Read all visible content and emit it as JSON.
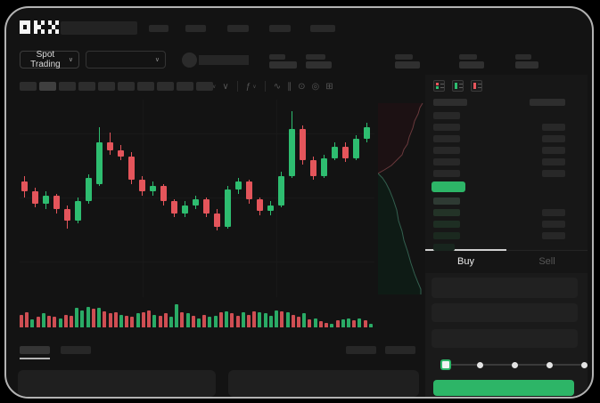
{
  "app": {
    "logo_label": "OKX"
  },
  "colors": {
    "candle_green": "#2ebd70",
    "candle_red": "#e4555b",
    "accent_green": "#2db567",
    "tab_indicator": "#cfcfcf",
    "panel_bg": "#171717",
    "device_bg": "#131313"
  },
  "header": {
    "nav_placeholder_count": 5
  },
  "ticker": {
    "market_selector": {
      "label": "Spot Trading",
      "chevron": "∨"
    },
    "pair_dropdown": {
      "chevron": "∨"
    },
    "stat_pair_count": 5
  },
  "chart_toolbar": {
    "timeframe_count": 10,
    "icons": [
      {
        "name": "candlestick-style-icon",
        "glyph": "",
        "chevron": "∨"
      },
      {
        "name": "chart-layout-icon",
        "glyph": "∨"
      },
      {
        "name": "divider"
      },
      {
        "name": "indicators-icon",
        "glyph": "ƒ",
        "chevron": "∨"
      },
      {
        "name": "divider"
      },
      {
        "name": "drawing-tools-icon",
        "glyph": "∿"
      },
      {
        "name": "compare-icon",
        "glyph": "∥"
      },
      {
        "name": "screenshot-icon",
        "glyph": "⊙"
      },
      {
        "name": "settings-icon",
        "glyph": "◎"
      },
      {
        "name": "fullscreen-icon",
        "glyph": "⊞"
      }
    ]
  },
  "chart_data": {
    "type": "candlestick",
    "title": "",
    "xlabel": "",
    "ylabel": "",
    "scale_note": "no axis labels visible; OHLC normalized to 0-100 of visible pane",
    "candles": [
      [
        58,
        61,
        50,
        53
      ],
      [
        53,
        55,
        45,
        47
      ],
      [
        47,
        53,
        44,
        51
      ],
      [
        51,
        52,
        42,
        44
      ],
      [
        44,
        46,
        34,
        38
      ],
      [
        38,
        50,
        37,
        48
      ],
      [
        48,
        62,
        47,
        60
      ],
      [
        57,
        86,
        56,
        78
      ],
      [
        78,
        83,
        72,
        74
      ],
      [
        74,
        77,
        69,
        71
      ],
      [
        71,
        73,
        57,
        59
      ],
      [
        59,
        61,
        51,
        53
      ],
      [
        53,
        58,
        51,
        56
      ],
      [
        56,
        57,
        46,
        48
      ],
      [
        48,
        49,
        40,
        42
      ],
      [
        42,
        48,
        40,
        46
      ],
      [
        46,
        51,
        44,
        49
      ],
      [
        49,
        50,
        40,
        42
      ],
      [
        42,
        44,
        33,
        35
      ],
      [
        35,
        56,
        34,
        54
      ],
      [
        54,
        60,
        52,
        58
      ],
      [
        58,
        59,
        47,
        49
      ],
      [
        49,
        50,
        41,
        43
      ],
      [
        43,
        48,
        41,
        46
      ],
      [
        46,
        63,
        45,
        61
      ],
      [
        61,
        94,
        60,
        85
      ],
      [
        85,
        87,
        67,
        69
      ],
      [
        69,
        71,
        59,
        61
      ],
      [
        61,
        72,
        60,
        70
      ],
      [
        70,
        78,
        69,
        76
      ],
      [
        76,
        78,
        68,
        70
      ],
      [
        70,
        82,
        69,
        80
      ],
      [
        80,
        88,
        78,
        86
      ]
    ],
    "volume": {
      "colors": "rrgrgrrgrrgggrgrrrgrrgrrgrrggrgrgrggrgrrgrrggggrgrrgrgrrgrggrgrg",
      "values": [
        55,
        65,
        35,
        45,
        60,
        50,
        45,
        40,
        55,
        50,
        85,
        75,
        90,
        80,
        85,
        70,
        60,
        65,
        55,
        50,
        45,
        60,
        65,
        75,
        55,
        50,
        60,
        45,
        100,
        65,
        60,
        50,
        40,
        55,
        45,
        50,
        65,
        70,
        60,
        50,
        65,
        55,
        70,
        65,
        60,
        50,
        75,
        70,
        65,
        55,
        45,
        60,
        35,
        40,
        28,
        18,
        14,
        30,
        35,
        38,
        32,
        40,
        30,
        16
      ]
    },
    "depth": {
      "asks_line": [
        [
          50,
          4
        ],
        [
          47,
          9
        ],
        [
          45,
          16
        ],
        [
          41,
          24
        ],
        [
          39,
          32
        ],
        [
          35,
          42
        ],
        [
          33,
          50
        ],
        [
          29,
          56
        ],
        [
          27,
          62
        ],
        [
          21,
          68
        ],
        [
          15,
          74
        ],
        [
          7,
          79
        ],
        [
          0,
          83
        ]
      ],
      "bids_line": [
        [
          0,
          83
        ],
        [
          5,
          88
        ],
        [
          9,
          94
        ],
        [
          13,
          102
        ],
        [
          17,
          112
        ],
        [
          21,
          124
        ],
        [
          23,
          136
        ],
        [
          27,
          148
        ],
        [
          29,
          158
        ],
        [
          33,
          170
        ],
        [
          37,
          184
        ],
        [
          41,
          196
        ],
        [
          45,
          206
        ],
        [
          48,
          213
        ],
        [
          48,
          219
        ]
      ]
    }
  },
  "orderbook": {
    "view_mode_icons": [
      "book-combined-icon",
      "book-buy-icon",
      "book-sell-icon"
    ],
    "ask_rows": [
      {
        "right": false
      },
      {
        "right": true
      },
      {
        "right": true
      },
      {
        "right": true
      },
      {
        "right": true
      },
      {
        "right": true
      }
    ],
    "last_price_highlight": "green",
    "bid_rows": [
      {
        "right": false,
        "shade": 0
      },
      {
        "right": true,
        "shade": 1
      },
      {
        "right": true,
        "shade": 2
      },
      {
        "right": true,
        "shade": 3
      },
      {
        "right": false,
        "shade": 4
      }
    ]
  },
  "trade_panel": {
    "tabs": [
      {
        "label": "Buy",
        "active": true
      },
      {
        "label": "Sell",
        "active": false
      }
    ],
    "field_count": 3,
    "slider": {
      "steps": 5,
      "active_step": 0
    },
    "submit_color": "#2db567"
  },
  "bottom_panel": {
    "tab_count": 2,
    "active_tab": 0,
    "button_count": 2,
    "panel_count": 2
  }
}
